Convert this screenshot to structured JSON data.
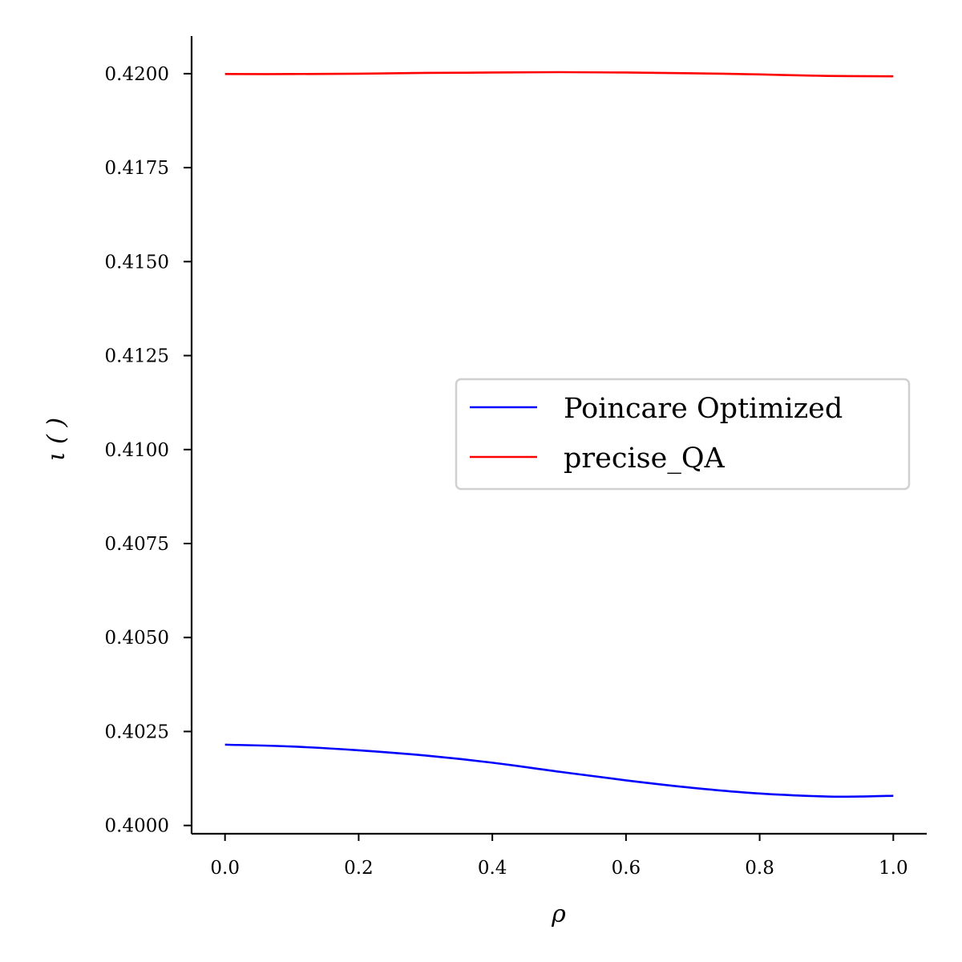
{
  "chart_data": {
    "type": "line",
    "title": "",
    "xlabel": "ρ",
    "ylabel": "ι ( )",
    "xlim": [
      -0.05,
      1.05
    ],
    "ylim": [
      0.39978,
      0.421
    ],
    "x_ticks": [
      0.0,
      0.2,
      0.4,
      0.6,
      0.8,
      1.0
    ],
    "x_tick_labels": [
      "0.0",
      "0.2",
      "0.4",
      "0.6",
      "0.8",
      "1.0"
    ],
    "y_ticks": [
      0.4,
      0.4025,
      0.405,
      0.4075,
      0.41,
      0.4125,
      0.415,
      0.4175,
      0.42
    ],
    "y_tick_labels": [
      "0.4000",
      "0.4025",
      "0.4050",
      "0.4075",
      "0.4100",
      "0.4125",
      "0.4150",
      "0.4175",
      "0.4200"
    ],
    "grid": false,
    "legend_position": "center-right",
    "series": [
      {
        "name": "Poincare Optimized",
        "color": "#0000ff",
        "x": [
          0.0,
          0.1,
          0.2,
          0.3,
          0.4,
          0.5,
          0.6,
          0.7,
          0.8,
          0.9,
          0.95,
          1.0
        ],
        "y": [
          0.40215,
          0.4021,
          0.402,
          0.40186,
          0.40167,
          0.40143,
          0.4012,
          0.401,
          0.40085,
          0.40077,
          0.40077,
          0.40079
        ]
      },
      {
        "name": "precise_QA",
        "color": "#ff0000",
        "x": [
          0.0,
          0.1,
          0.2,
          0.3,
          0.4,
          0.5,
          0.6,
          0.7,
          0.8,
          0.9,
          1.0
        ],
        "y": [
          0.41999,
          0.41999,
          0.42,
          0.42002,
          0.42003,
          0.42004,
          0.42003,
          0.42001,
          0.41998,
          0.41994,
          0.41993
        ]
      }
    ]
  }
}
